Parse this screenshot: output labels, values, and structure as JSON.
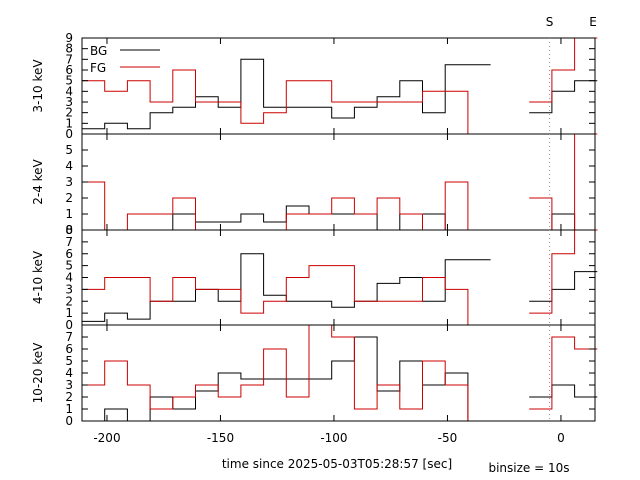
{
  "xlabel": "time since 2025-05-03T05:28:57 [sec]",
  "binsize_label": "binsize = 10s",
  "x_range": [
    -211,
    15
  ],
  "x_ticks": [
    -200,
    -150,
    -100,
    -50,
    0
  ],
  "markers": [
    {
      "label": "S",
      "x": -5
    },
    {
      "label": "E",
      "x": 7
    }
  ],
  "legend": {
    "bg_label": "BG",
    "fg_label": "FG",
    "placement": "top-left of first panel"
  },
  "colors": {
    "bg": "#000000",
    "fg": "#cc0000",
    "marker_line": "#999999"
  },
  "chart_data": [
    {
      "type": "line",
      "panel_label": "3-10 keV",
      "ylim": [
        0,
        9
      ],
      "y_ticks": [
        0,
        1,
        2,
        3,
        4,
        5,
        6,
        7,
        8,
        9
      ],
      "series": [
        {
          "name": "BG",
          "style": "step",
          "x": [
            -211,
            -201,
            -191,
            -181,
            -171,
            -161,
            -151,
            -141,
            -131,
            -121,
            -111,
            -101,
            -91,
            -81,
            -71,
            -61,
            -51,
            -41
          ],
          "y": [
            0.5,
            1,
            0.5,
            2,
            2.5,
            3.5,
            2.5,
            7,
            2.5,
            2.5,
            2.5,
            1.5,
            2.5,
            3.5,
            5,
            2,
            6.5,
            6.5
          ]
        },
        {
          "name": "BG",
          "style": "step",
          "x": [
            -14,
            -4,
            6
          ],
          "y": [
            2,
            4,
            5
          ]
        },
        {
          "name": "FG",
          "style": "step",
          "x": [
            -211,
            -201,
            -191,
            -181,
            -171,
            -161,
            -151,
            -141,
            -131,
            -121,
            -111,
            -101,
            -91,
            -81,
            -71,
            -61,
            -51,
            -41
          ],
          "y": [
            5,
            4,
            5,
            3,
            6,
            3,
            3,
            1,
            2,
            5,
            5,
            3,
            3,
            3,
            3,
            4,
            4,
            0
          ]
        },
        {
          "name": "FG",
          "style": "step",
          "x": [
            -14,
            -4,
            6
          ],
          "y": [
            3,
            6,
            9
          ]
        }
      ]
    },
    {
      "type": "line",
      "panel_label": "2-4 keV",
      "ylim": [
        0,
        6
      ],
      "y_ticks": [
        0,
        1,
        2,
        3,
        4,
        5
      ],
      "series": [
        {
          "name": "BG",
          "style": "step",
          "x": [
            -211,
            -201,
            -191,
            -181,
            -171,
            -161,
            -151,
            -141,
            -131,
            -121,
            -111,
            -101,
            -91,
            -81,
            -71,
            -61,
            -51,
            -41
          ],
          "y": [
            0,
            0,
            0,
            0,
            1,
            0.5,
            0.5,
            1,
            0.5,
            1.5,
            1,
            1,
            1,
            0,
            1,
            1,
            0,
            0
          ]
        },
        {
          "name": "BG",
          "style": "step",
          "x": [
            -14,
            -4,
            6
          ],
          "y": [
            0,
            1,
            0
          ]
        },
        {
          "name": "FG",
          "style": "step",
          "x": [
            -211,
            -201,
            -191,
            -181,
            -171,
            -161,
            -151,
            -141,
            -131,
            -121,
            -111,
            -101,
            -91,
            -81,
            -71,
            -61,
            -51,
            -41
          ],
          "y": [
            3,
            0,
            1,
            1,
            2,
            0,
            0,
            0,
            0,
            1,
            1,
            2,
            1,
            2,
            1,
            0,
            3,
            0
          ]
        },
        {
          "name": "FG",
          "style": "step",
          "x": [
            -14,
            -4,
            6
          ],
          "y": [
            2,
            0,
            6
          ]
        }
      ]
    },
    {
      "type": "line",
      "panel_label": "4-10 keV",
      "ylim": [
        0,
        8
      ],
      "y_ticks": [
        0,
        1,
        2,
        3,
        4,
        5,
        6,
        7,
        8
      ],
      "series": [
        {
          "name": "BG",
          "style": "step",
          "x": [
            -211,
            -201,
            -191,
            -181,
            -171,
            -161,
            -151,
            -141,
            -131,
            -121,
            -111,
            -101,
            -91,
            -81,
            -71,
            -61,
            -51,
            -41
          ],
          "y": [
            0.3,
            1,
            0.5,
            2,
            2,
            3,
            2,
            6,
            2.5,
            2,
            2,
            1.5,
            2,
            3.5,
            4,
            2,
            5.5,
            5.5
          ]
        },
        {
          "name": "BG",
          "style": "step",
          "x": [
            -14,
            -4,
            6
          ],
          "y": [
            2,
            3,
            4.5
          ]
        },
        {
          "name": "FG",
          "style": "step",
          "x": [
            -211,
            -201,
            -191,
            -181,
            -171,
            -161,
            -151,
            -141,
            -131,
            -121,
            -111,
            -101,
            -91,
            -81,
            -71,
            -61,
            -51,
            -41
          ],
          "y": [
            3,
            4,
            4,
            2,
            4,
            3,
            3,
            1,
            2,
            4,
            5,
            5,
            2,
            2,
            2,
            4,
            3,
            0
          ]
        },
        {
          "name": "FG",
          "style": "step",
          "x": [
            -14,
            -4,
            6
          ],
          "y": [
            1,
            6,
            8
          ]
        }
      ]
    },
    {
      "type": "line",
      "panel_label": "10-20 keV",
      "ylim": [
        0,
        8
      ],
      "y_ticks": [
        0,
        1,
        2,
        3,
        4,
        5,
        6,
        7
      ],
      "series": [
        {
          "name": "BG",
          "style": "step",
          "x": [
            -211,
            -201,
            -191,
            -181,
            -171,
            -161,
            -151,
            -141,
            -131,
            -121,
            -111,
            -101,
            -91,
            -81,
            -71,
            -61,
            -51,
            -41
          ],
          "y": [
            0,
            1,
            0,
            2,
            1,
            2.5,
            4,
            3.5,
            3.5,
            3.5,
            3.5,
            5,
            7,
            2.5,
            5,
            3,
            4,
            0
          ]
        },
        {
          "name": "BG",
          "style": "step",
          "x": [
            -14,
            -4,
            6
          ],
          "y": [
            2,
            3,
            2
          ]
        },
        {
          "name": "FG",
          "style": "step",
          "x": [
            -211,
            -201,
            -191,
            -181,
            -171,
            -161,
            -151,
            -141,
            -131,
            -121,
            -111,
            -101,
            -91,
            -81,
            -71,
            -61,
            -51,
            -41
          ],
          "y": [
            3,
            5,
            3,
            1,
            2,
            3,
            2,
            3,
            6,
            2,
            8,
            7,
            1,
            3,
            1,
            5,
            3,
            0
          ]
        },
        {
          "name": "FG",
          "style": "step",
          "x": [
            -14,
            -4,
            6
          ],
          "y": [
            1,
            7,
            6
          ]
        }
      ]
    }
  ]
}
